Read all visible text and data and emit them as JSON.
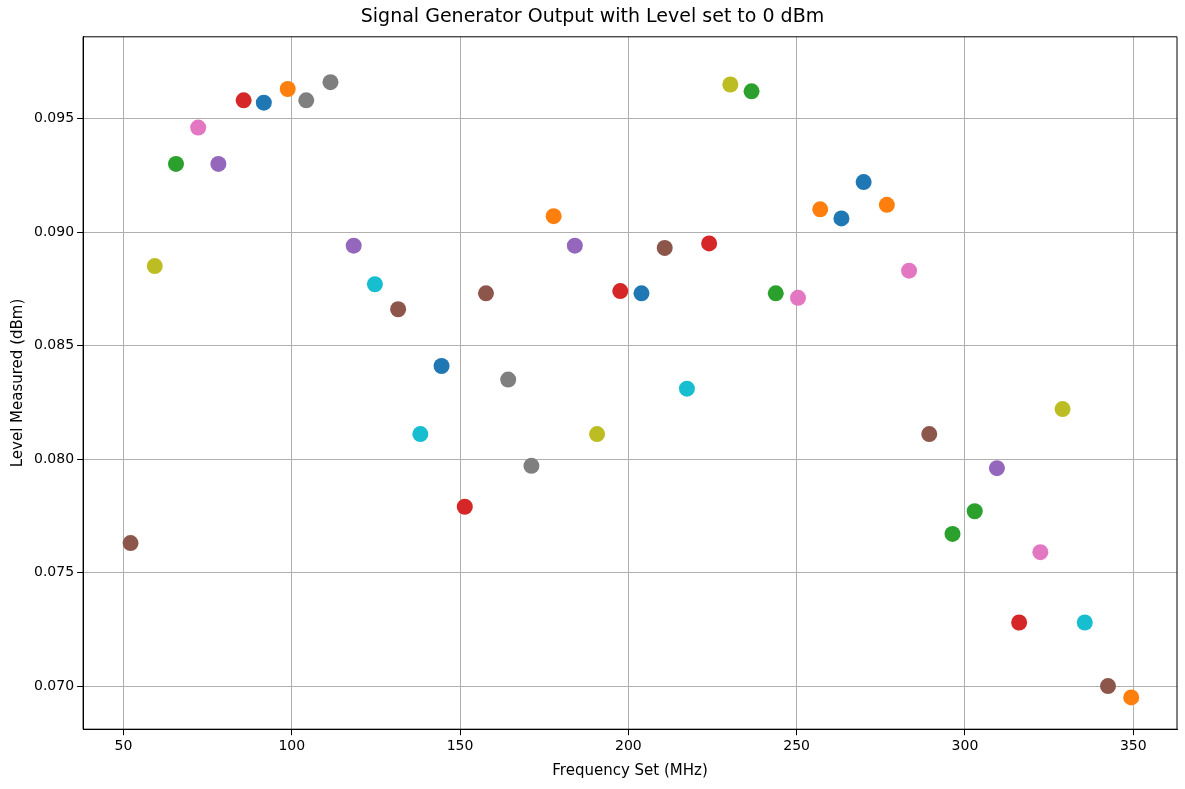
{
  "chart_data": {
    "type": "scatter",
    "title": "Signal Generator Output with Level set to 0 dBm",
    "xlabel": "Frequency Set (MHz)",
    "ylabel": "Level Measured (dBm)",
    "x": [
      52.1,
      59.3,
      65.6,
      72.2,
      78.2,
      85.7,
      91.7,
      98.8,
      104.3,
      111.5,
      118.4,
      124.7,
      131.6,
      138.2,
      144.5,
      151.4,
      157.7,
      164.3,
      171.2,
      177.8,
      184.1,
      190.7,
      197.6,
      203.9,
      210.8,
      217.4,
      224.0,
      230.3,
      236.6,
      243.8,
      250.4,
      257.0,
      263.3,
      269.9,
      276.8,
      283.4,
      289.4,
      296.3,
      302.9,
      309.5,
      316.1,
      322.4,
      329.0,
      335.6,
      342.5,
      349.4
    ],
    "values": [
      0.0763,
      0.0885,
      0.093,
      0.0946,
      0.093,
      0.0958,
      0.0957,
      0.0963,
      0.0958,
      0.0966,
      0.0894,
      0.0877,
      0.0866,
      0.0811,
      0.0841,
      0.0779,
      0.0873,
      0.0835,
      0.0797,
      0.0907,
      0.0894,
      0.0811,
      0.0874,
      0.0873,
      0.0893,
      0.0831,
      0.0895,
      0.0965,
      0.0962,
      0.0873,
      0.0871,
      0.091,
      0.0906,
      0.0922,
      0.0912,
      0.0883,
      0.0811,
      0.0767,
      0.0777,
      0.0796,
      0.0728,
      0.0759,
      0.0822,
      0.0728,
      0.07,
      0.0695
    ],
    "colors": [
      "#8c564b",
      "#bcbd22",
      "#2ca02c",
      "#e377c2",
      "#9467bd",
      "#d62728",
      "#1f77b4",
      "#ff7f0e",
      "#7f7f7f",
      "#7f7f7f",
      "#9467bd",
      "#17becf",
      "#8c564b",
      "#17becf",
      "#1f77b4",
      "#d62728",
      "#8c564b",
      "#7f7f7f",
      "#7f7f7f",
      "#ff7f0e",
      "#9467bd",
      "#bcbd22",
      "#d62728",
      "#1f77b4",
      "#8c564b",
      "#17becf",
      "#d62728",
      "#bcbd22",
      "#2ca02c",
      "#2ca02c",
      "#e377c2",
      "#ff7f0e",
      "#1f77b4",
      "#1f77b4",
      "#ff7f0e",
      "#e377c2",
      "#8c564b",
      "#2ca02c",
      "#2ca02c",
      "#9467bd",
      "#d62728",
      "#e377c2",
      "#bcbd22",
      "#17becf",
      "#8c564b",
      "#ff7f0e"
    ],
    "xlim": [
      38,
      363
    ],
    "xticks": [
      50,
      100,
      150,
      200,
      250,
      300,
      350
    ],
    "ylim": [
      0.0681,
      0.0986
    ],
    "yticks": [
      {
        "value": 0.07,
        "label": "0.070"
      },
      {
        "value": 0.075,
        "label": "0.075"
      },
      {
        "value": 0.08,
        "label": "0.080"
      },
      {
        "value": 0.085,
        "label": "0.085"
      },
      {
        "value": 0.09,
        "label": "0.090"
      },
      {
        "value": 0.095,
        "label": "0.095"
      }
    ],
    "grid": true,
    "legend": false,
    "marker": "circle"
  }
}
